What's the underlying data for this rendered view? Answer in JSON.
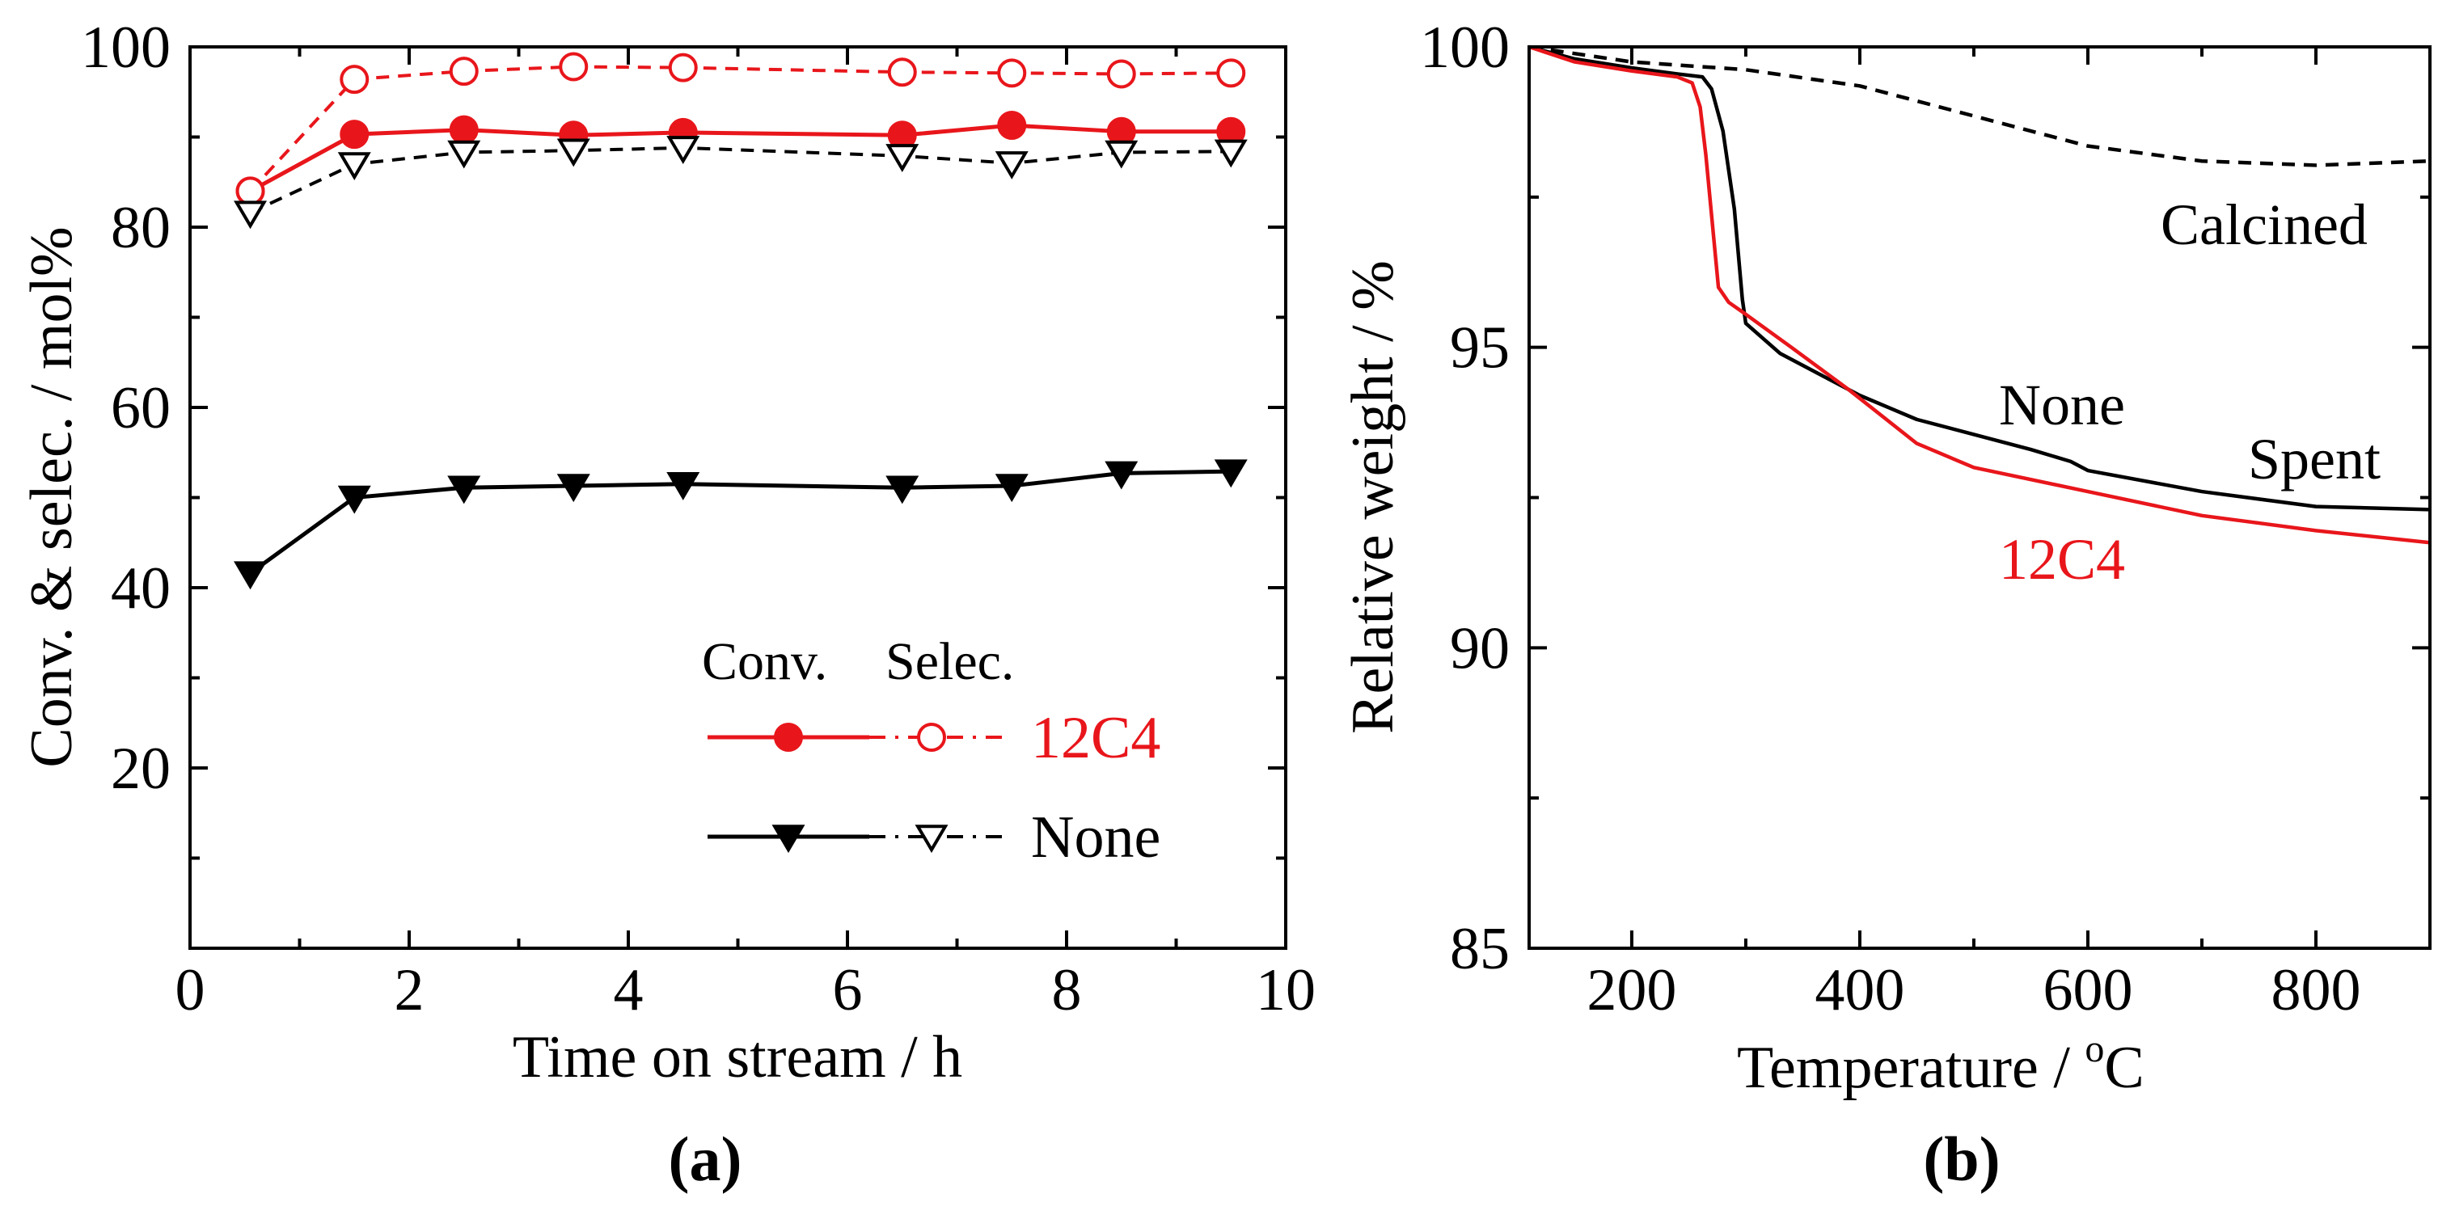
{
  "chart_data": [
    {
      "type": "line",
      "panel_label": "(a)",
      "xlabel": "Time on stream / h",
      "ylabel": "Conv. & selec. / mol%",
      "xlim": [
        0,
        10
      ],
      "ylim": [
        0,
        100
      ],
      "xticks": [
        0,
        2,
        4,
        6,
        8,
        10
      ],
      "yticks": [
        20,
        40,
        60,
        80,
        100
      ],
      "x": [
        0.55,
        1.5,
        2.5,
        3.5,
        4.5,
        6.5,
        7.5,
        8.5,
        9.5
      ],
      "legend": {
        "header_conv": "Conv.",
        "header_selec": "Selec.",
        "entries": [
          {
            "name": "12C4",
            "color": "#e8161b"
          },
          {
            "name": "None",
            "color": "#000000"
          }
        ],
        "placement": "bottom-right"
      },
      "series": [
        {
          "group": "12C4",
          "kind": "conv",
          "color": "#e8161b",
          "marker": "filled-circle",
          "line": "solid",
          "values": [
            84.0,
            90.3,
            90.8,
            90.2,
            90.5,
            90.2,
            91.3,
            90.6,
            90.6
          ]
        },
        {
          "group": "12C4",
          "kind": "selec",
          "color": "#e8161b",
          "marker": "open-circle",
          "line": "dashed",
          "values": [
            84.0,
            96.4,
            97.3,
            97.8,
            97.7,
            97.2,
            97.1,
            97.0,
            97.1
          ]
        },
        {
          "group": "None",
          "kind": "conv",
          "color": "#000000",
          "marker": "filled-triangle-down",
          "line": "solid",
          "values": [
            41.6,
            50.0,
            51.1,
            51.3,
            51.5,
            51.1,
            51.3,
            52.7,
            52.9
          ]
        },
        {
          "group": "None",
          "kind": "selec",
          "color": "#000000",
          "marker": "open-triangle-down",
          "line": "dashed",
          "values": [
            81.6,
            87.0,
            88.3,
            88.5,
            88.8,
            87.9,
            87.1,
            88.3,
            88.4
          ]
        }
      ],
      "grid": false
    },
    {
      "type": "line",
      "panel_label": "(b)",
      "xlabel_main": "Temperature / ",
      "xlabel_sup": "o",
      "xlabel_unit": "C",
      "ylabel": "Relative weight / %",
      "xlim": [
        110,
        900
      ],
      "ylim": [
        85,
        100
      ],
      "xticks": [
        200,
        400,
        600,
        800
      ],
      "yticks": [
        85,
        90,
        95,
        100
      ],
      "annotations": {
        "calcined": "Calcined",
        "none": "None",
        "spent": "Spent",
        "c12c4": "12C4"
      },
      "series": [
        {
          "name": "Calcined",
          "color": "#000000",
          "line": "dashed",
          "x": [
            110,
            200,
            300,
            400,
            500,
            600,
            700,
            800,
            900
          ],
          "y": [
            100.0,
            99.75,
            99.62,
            99.35,
            98.85,
            98.35,
            98.1,
            98.03,
            98.1
          ]
        },
        {
          "name": "None",
          "color": "#000000",
          "line": "solid",
          "x": [
            110,
            150,
            200,
            240,
            262,
            270,
            280,
            290,
            297,
            300,
            330,
            370,
            400,
            450,
            500,
            550,
            585,
            600,
            700,
            800,
            900
          ],
          "y": [
            100.0,
            99.8,
            99.65,
            99.55,
            99.5,
            99.3,
            98.6,
            97.3,
            95.8,
            95.4,
            94.9,
            94.5,
            94.2,
            93.8,
            93.55,
            93.3,
            93.1,
            92.95,
            92.6,
            92.35,
            92.3
          ]
        },
        {
          "name": "12C4",
          "color": "#e8161b",
          "line": "solid",
          "x": [
            110,
            150,
            200,
            240,
            253,
            260,
            265,
            270,
            276,
            285,
            300,
            340,
            390,
            450,
            500,
            600,
            700,
            800,
            900
          ],
          "y": [
            100.0,
            99.75,
            99.6,
            99.5,
            99.4,
            99.0,
            98.2,
            97.2,
            96.0,
            95.75,
            95.55,
            95.0,
            94.3,
            93.4,
            93.0,
            92.6,
            92.2,
            91.95,
            91.75
          ]
        }
      ],
      "grid": false
    }
  ]
}
